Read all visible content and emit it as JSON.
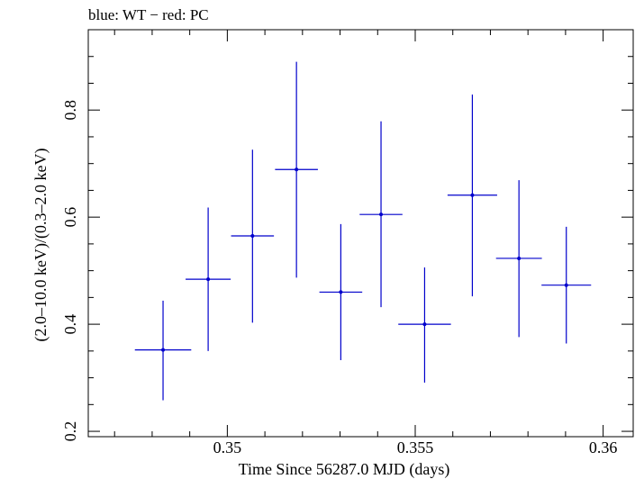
{
  "chart_data": {
    "type": "scatter",
    "title": "blue: WT − red: PC",
    "xlabel": "Time Since 56287.0 MJD (days)",
    "ylabel": "(2.0–10.0 keV)/(0.3–2.0 keV)",
    "xlim": [
      0.3463,
      0.3608
    ],
    "ylim": [
      0.19,
      0.95
    ],
    "xticks": [
      0.35,
      0.355,
      0.36
    ],
    "xtick_labels": [
      "0.35",
      "0.355",
      "0.36"
    ],
    "yticks": [
      0.2,
      0.4,
      0.6,
      0.8
    ],
    "ytick_labels": [
      "0.2",
      "0.4",
      "0.6",
      "0.8"
    ],
    "grid": false,
    "series": [
      {
        "color": "#0000cc",
        "points": [
          {
            "x": 0.34829,
            "y": 0.352,
            "xerr": 0.00075,
            "ylo": 0.258,
            "yhi": 0.444
          },
          {
            "x": 0.34949,
            "y": 0.484,
            "xerr": 0.0006,
            "ylo": 0.35,
            "yhi": 0.618
          },
          {
            "x": 0.35067,
            "y": 0.565,
            "xerr": 0.00057,
            "ylo": 0.403,
            "yhi": 0.726
          },
          {
            "x": 0.35184,
            "y": 0.689,
            "xerr": 0.00057,
            "ylo": 0.487,
            "yhi": 0.89
          },
          {
            "x": 0.35302,
            "y": 0.46,
            "xerr": 0.00057,
            "ylo": 0.333,
            "yhi": 0.587
          },
          {
            "x": 0.35409,
            "y": 0.605,
            "xerr": 0.00057,
            "ylo": 0.432,
            "yhi": 0.779
          },
          {
            "x": 0.35525,
            "y": 0.4,
            "xerr": 0.0007,
            "ylo": 0.291,
            "yhi": 0.506
          },
          {
            "x": 0.35652,
            "y": 0.641,
            "xerr": 0.00066,
            "ylo": 0.452,
            "yhi": 0.829
          },
          {
            "x": 0.35776,
            "y": 0.523,
            "xerr": 0.00061,
            "ylo": 0.376,
            "yhi": 0.669
          },
          {
            "x": 0.35902,
            "y": 0.473,
            "xerr": 0.00066,
            "ylo": 0.364,
            "yhi": 0.582
          }
        ]
      }
    ]
  }
}
